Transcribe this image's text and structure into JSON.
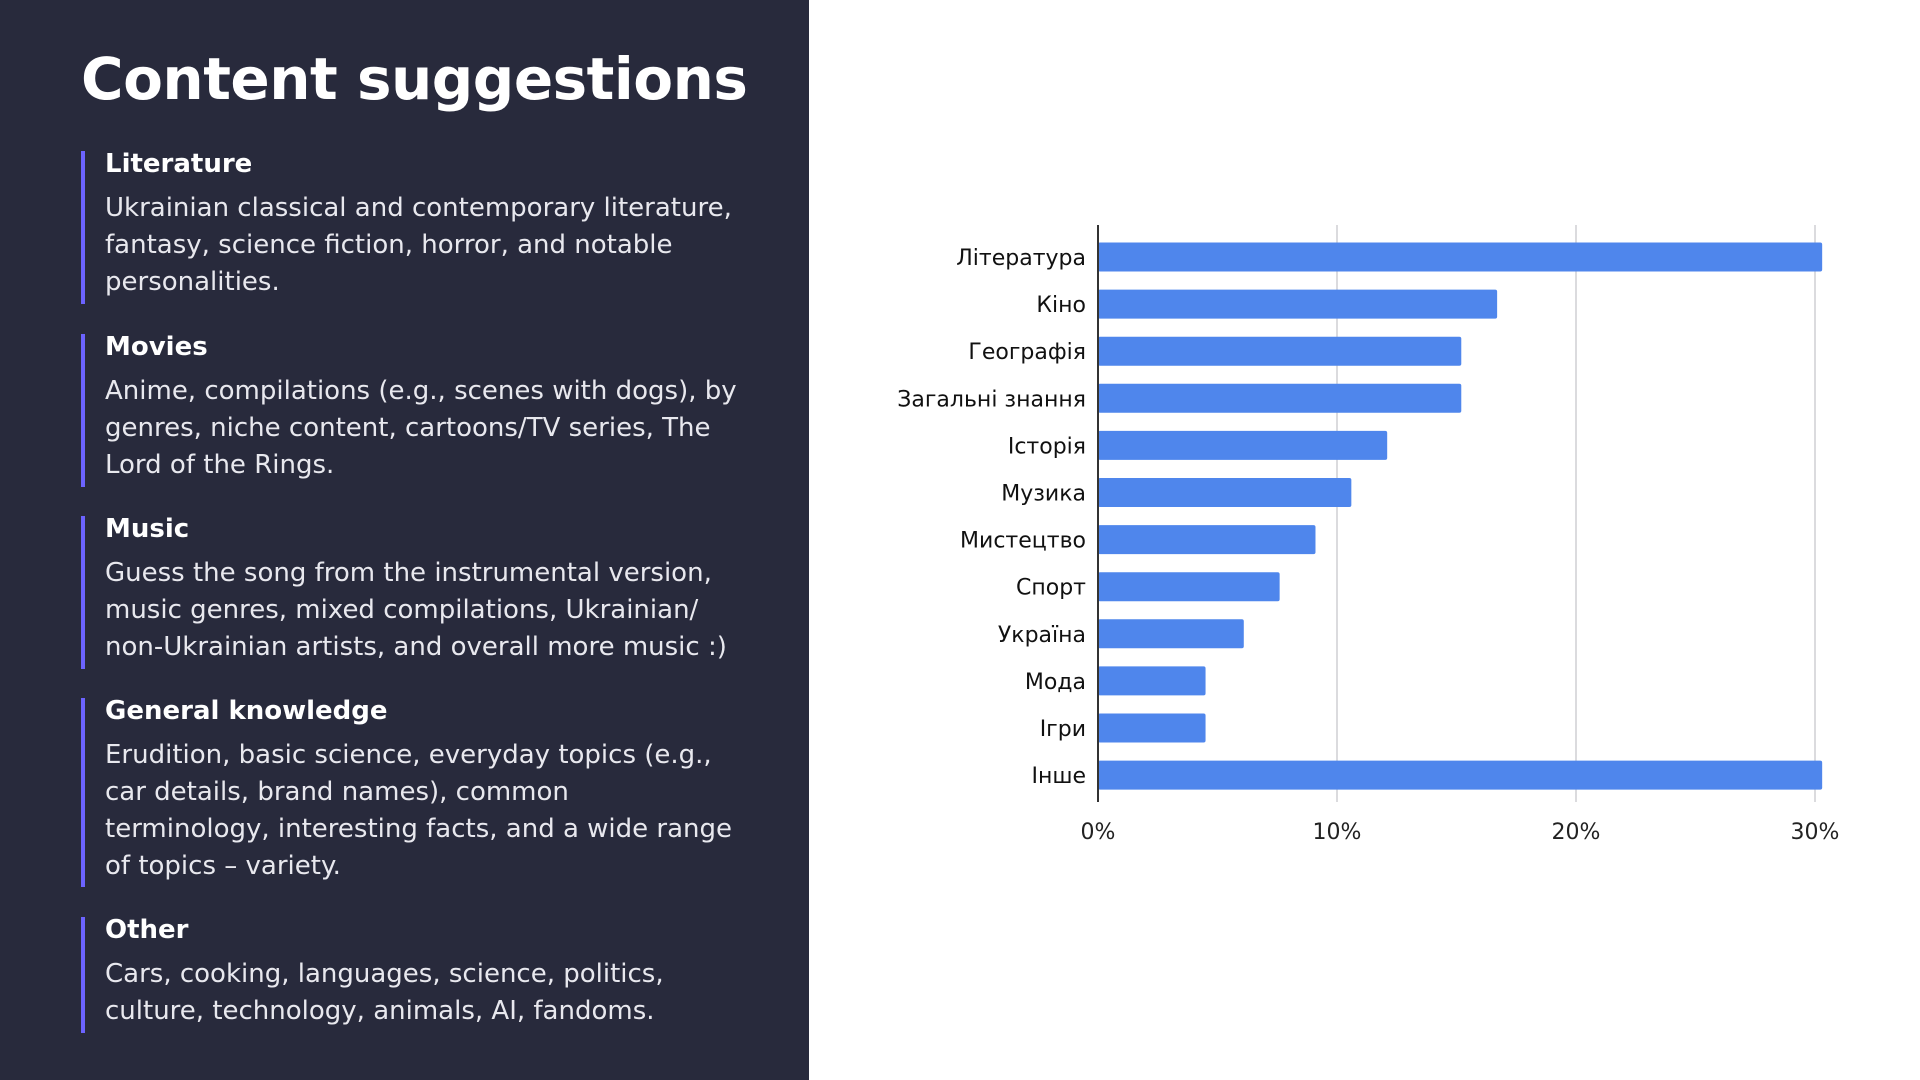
{
  "title": "Content suggestions",
  "sections": [
    {
      "heading": "Literature",
      "body": "Ukrainian classical and contemporary literature, fantasy, science fiction, horror, and notable personalities."
    },
    {
      "heading": "Movies",
      "body": "Anime, compilations (e.g., scenes with dogs), by genres, niche content, cartoons/TV series, The Lord of the Rings."
    },
    {
      "heading": "Music",
      "body": "Guess the song from the instrumental version, music genres, mixed compilations, Ukrainian/ non-Ukrainian artists, and overall more music :)"
    },
    {
      "heading": "General knowledge",
      "body": "Erudition, basic science, everyday topics (e.g., car details, brand names), common terminology, interesting facts, and a wide range of topics – variety."
    },
    {
      "heading": "Other",
      "body": "Cars, cooking, languages, science, politics, culture, technology, animals, AI, fandoms."
    }
  ],
  "colors": {
    "panel_bg": "#282a3c",
    "accent": "#6c63ff",
    "bar": "#4f86ec"
  },
  "chart_data": {
    "type": "bar",
    "orientation": "horizontal",
    "categories": [
      "Література",
      "Кіно",
      "Географія",
      "Загальні знання",
      "Історія",
      "Музика",
      "Мистецтво",
      "Спорт",
      "Україна",
      "Мода",
      "Ігри",
      "Інше"
    ],
    "values": [
      30.3,
      16.7,
      15.2,
      15.2,
      12.1,
      10.6,
      9.1,
      7.6,
      6.1,
      4.5,
      4.5,
      30.3
    ],
    "xlim": [
      0,
      30
    ],
    "x_ticks": [
      0,
      10,
      20,
      30
    ],
    "x_tick_labels": [
      "0%",
      "10%",
      "20%",
      "30%"
    ],
    "grid": true
  }
}
